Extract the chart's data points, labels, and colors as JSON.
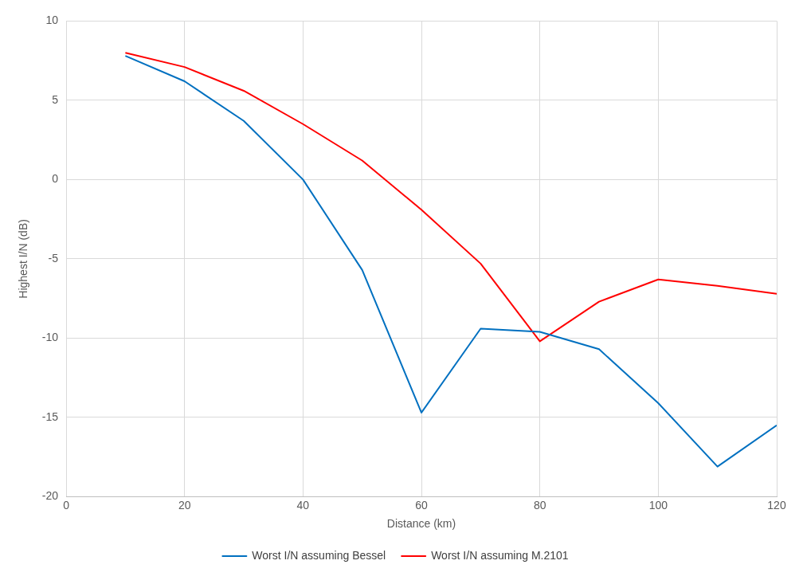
{
  "chart_data": {
    "type": "line",
    "xlabel": "Distance (km)",
    "ylabel": "Highest I/N (dB)",
    "x": [
      10,
      20,
      30,
      40,
      50,
      60,
      70,
      80,
      90,
      100,
      110,
      120
    ],
    "series": [
      {
        "name": "Worst I/N assuming Bessel",
        "color": "#0070c0",
        "values": [
          7.8,
          6.2,
          3.7,
          0,
          -5.7,
          -14.7,
          -9.4,
          -9.6,
          -10.7,
          -14.1,
          -18.1,
          -15.5
        ]
      },
      {
        "name": "Worst I/N assuming M.2101",
        "color": "#ff0000",
        "values": [
          8.0,
          7.1,
          5.6,
          3.5,
          1.2,
          -1.9,
          -5.3,
          -10.2,
          -7.7,
          -6.3,
          -6.7,
          -7.2
        ]
      }
    ],
    "xlim": [
      0,
      120
    ],
    "xticks": [
      0,
      20,
      40,
      60,
      80,
      100,
      120
    ],
    "ylim": [
      -20,
      10
    ],
    "yticks": [
      -20,
      -15,
      -10,
      -5,
      0,
      5,
      10
    ],
    "grid": true,
    "legend": "bottom",
    "marker": "none",
    "line_style": "solid"
  }
}
